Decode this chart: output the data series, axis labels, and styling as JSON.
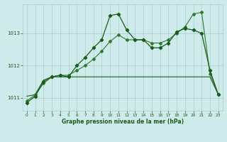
{
  "background_color": "#ceeaea",
  "grid_color": "#aacccc",
  "line_color1": "#1a5c1a",
  "line_color2": "#2d7a2d",
  "xlabel": "Graphe pression niveau de la mer (hPa)",
  "xlim": [
    -0.5,
    23.5
  ],
  "ylim": [
    1010.6,
    1013.9
  ],
  "yticks": [
    1011,
    1012,
    1013
  ],
  "xticks": [
    0,
    1,
    2,
    3,
    4,
    5,
    6,
    7,
    8,
    9,
    10,
    11,
    12,
    13,
    14,
    15,
    16,
    17,
    18,
    19,
    20,
    21,
    22,
    23
  ],
  "s1_x": [
    0,
    1,
    2,
    3,
    4,
    5,
    6,
    7,
    8,
    9,
    10,
    11,
    12,
    13,
    14,
    15,
    16,
    17,
    18,
    19,
    20,
    21,
    22,
    23
  ],
  "s1_y": [
    1010.85,
    1011.05,
    1011.5,
    1011.65,
    1011.7,
    1011.65,
    1012.0,
    1012.25,
    1012.55,
    1012.8,
    1013.55,
    1013.6,
    1013.1,
    1012.8,
    1012.8,
    1012.55,
    1012.55,
    1012.7,
    1013.05,
    1013.15,
    1013.1,
    1013.0,
    1011.85,
    1011.1
  ],
  "s2_x": [
    0,
    1,
    2,
    3,
    4,
    5,
    6,
    7,
    8,
    9,
    10,
    11,
    12,
    13,
    14,
    15,
    16,
    17,
    18,
    19,
    20,
    21,
    22,
    23
  ],
  "s2_y": [
    1010.9,
    1011.1,
    1011.45,
    1011.65,
    1011.7,
    1011.7,
    1011.85,
    1012.0,
    1012.2,
    1012.45,
    1012.75,
    1012.95,
    1012.8,
    1012.8,
    1012.8,
    1012.7,
    1012.7,
    1012.8,
    1013.0,
    1013.2,
    1013.6,
    1013.65,
    1011.75,
    1011.1
  ],
  "s3_x": [
    0,
    1,
    2,
    3,
    4,
    5,
    6,
    7,
    8,
    9,
    10,
    11,
    12,
    13,
    14,
    15,
    16,
    17,
    18,
    19,
    20,
    21,
    22,
    23
  ],
  "s3_y": [
    1011.05,
    1011.1,
    1011.55,
    1011.65,
    1011.65,
    1011.65,
    1011.65,
    1011.65,
    1011.65,
    1011.65,
    1011.65,
    1011.65,
    1011.65,
    1011.65,
    1011.65,
    1011.65,
    1011.65,
    1011.65,
    1011.65,
    1011.65,
    1011.65,
    1011.65,
    1011.65,
    1011.1
  ]
}
